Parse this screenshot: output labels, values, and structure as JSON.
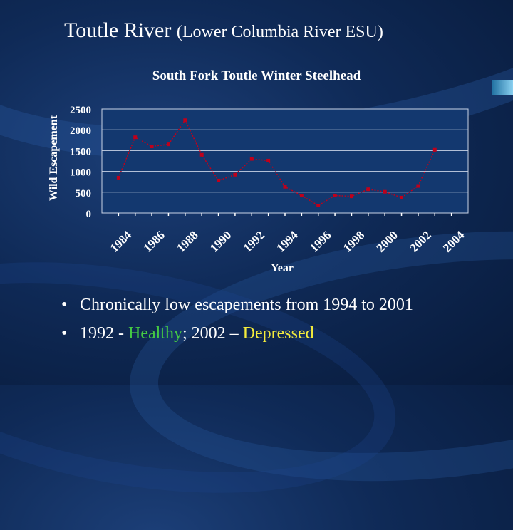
{
  "slide": {
    "title": "Toutle River",
    "subtitle": "(Lower Columbia River ESU)"
  },
  "bullets": {
    "line1": "Chronically low escapements from 1994 to 2001",
    "line2_prefix": "1992 - ",
    "line2_healthy": "Healthy",
    "line2_mid": "; 2002 – ",
    "line2_depressed": "Depressed"
  },
  "colors": {
    "series": "#c0001b",
    "healthy": "#44c844",
    "depressed": "#f4ec3c"
  },
  "chart_data": {
    "type": "line",
    "title": "South Fork Toutle Winter Steelhead",
    "xlabel": "Year",
    "ylabel": "Wild Escapement",
    "ylim": [
      0,
      2500
    ],
    "yticks": [
      0,
      500,
      1000,
      1500,
      2000,
      2500
    ],
    "xlim": [
      1983,
      2005
    ],
    "xtick_labels": [
      "1984",
      "1986",
      "1988",
      "1990",
      "1992",
      "1994",
      "1996",
      "1998",
      "2000",
      "2002",
      "2004"
    ],
    "grid": "horizontal",
    "series": [
      {
        "x": [
          1984,
          1985,
          1986,
          1987,
          1988,
          1989,
          1990,
          1991,
          1992,
          1993,
          1994,
          1995,
          1996,
          1997,
          1998,
          1999,
          2000,
          2001,
          2002,
          2003
        ],
        "values": [
          850,
          1820,
          1600,
          1650,
          2230,
          1400,
          780,
          920,
          1300,
          1260,
          630,
          420,
          180,
          420,
          400,
          570,
          510,
          370,
          650,
          1520
        ]
      }
    ]
  }
}
